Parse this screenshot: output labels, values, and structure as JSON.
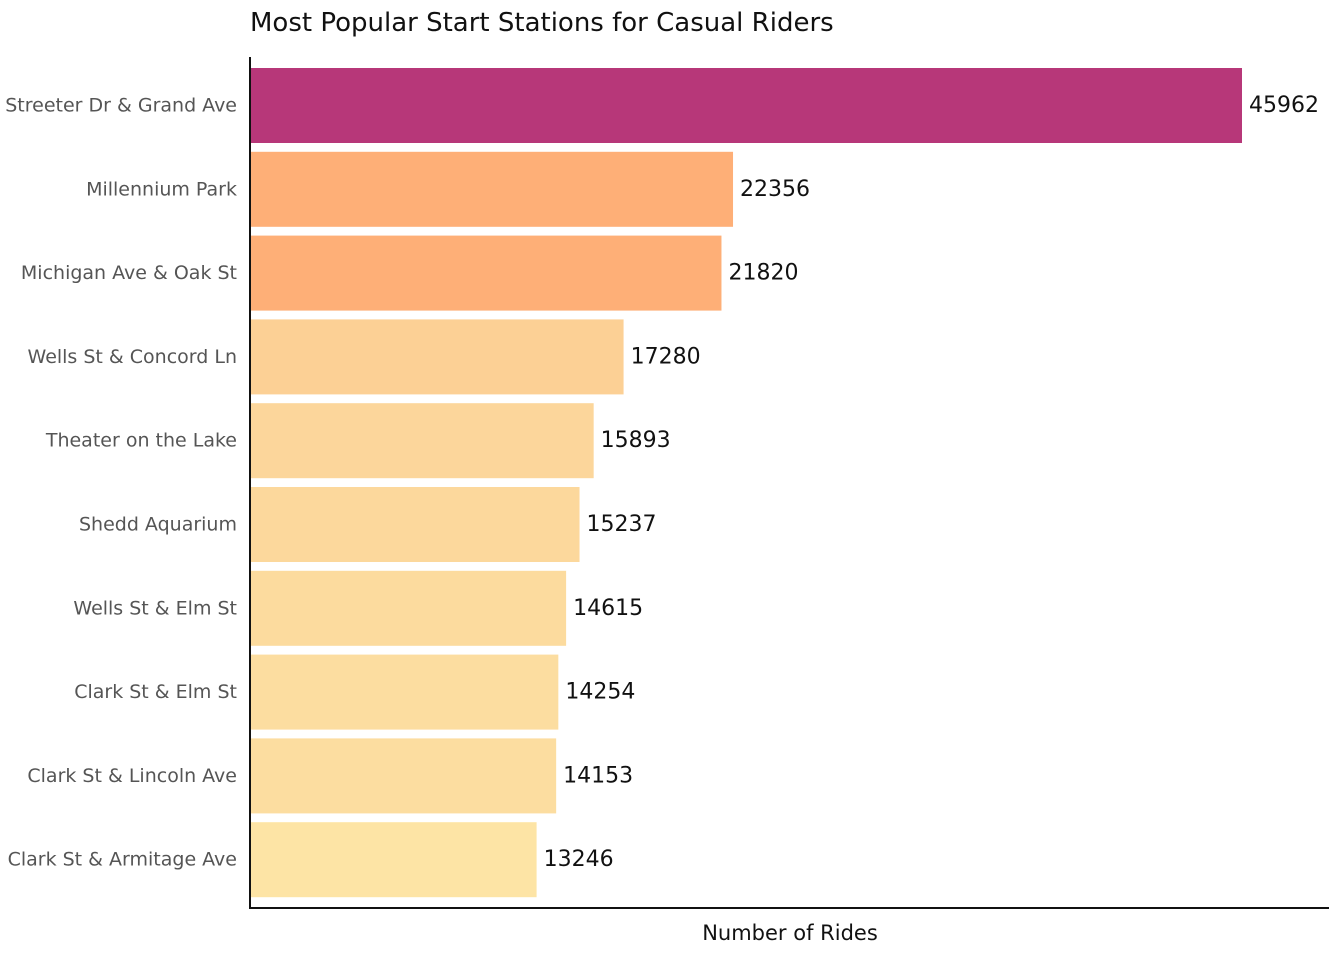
{
  "chart_data": {
    "type": "bar",
    "orientation": "horizontal",
    "title": "Most Popular Start Stations for Casual Riders",
    "xlabel": "Number of Rides",
    "ylabel": "",
    "categories": [
      "Streeter Dr & Grand Ave",
      "Millennium Park",
      "Michigan Ave & Oak St",
      "Wells St & Concord Ln",
      "Theater on the Lake",
      "Shedd Aquarium",
      "Wells St & Elm St",
      "Clark St & Elm St",
      "Clark St & Lincoln Ave",
      "Clark St & Armitage Ave"
    ],
    "values": [
      45962,
      22356,
      21820,
      17280,
      15893,
      15237,
      14615,
      14254,
      14153,
      13246
    ],
    "colors": [
      "#b73779",
      "#feaf77",
      "#feaf77",
      "#fcd095",
      "#fcd69b",
      "#fcd89c",
      "#fcdb9e",
      "#fcdda0",
      "#fcdda0",
      "#fde4a5"
    ],
    "xlim": [
      0,
      50000
    ],
    "grid": false,
    "legend": "none",
    "x_ticks_visible": false
  }
}
